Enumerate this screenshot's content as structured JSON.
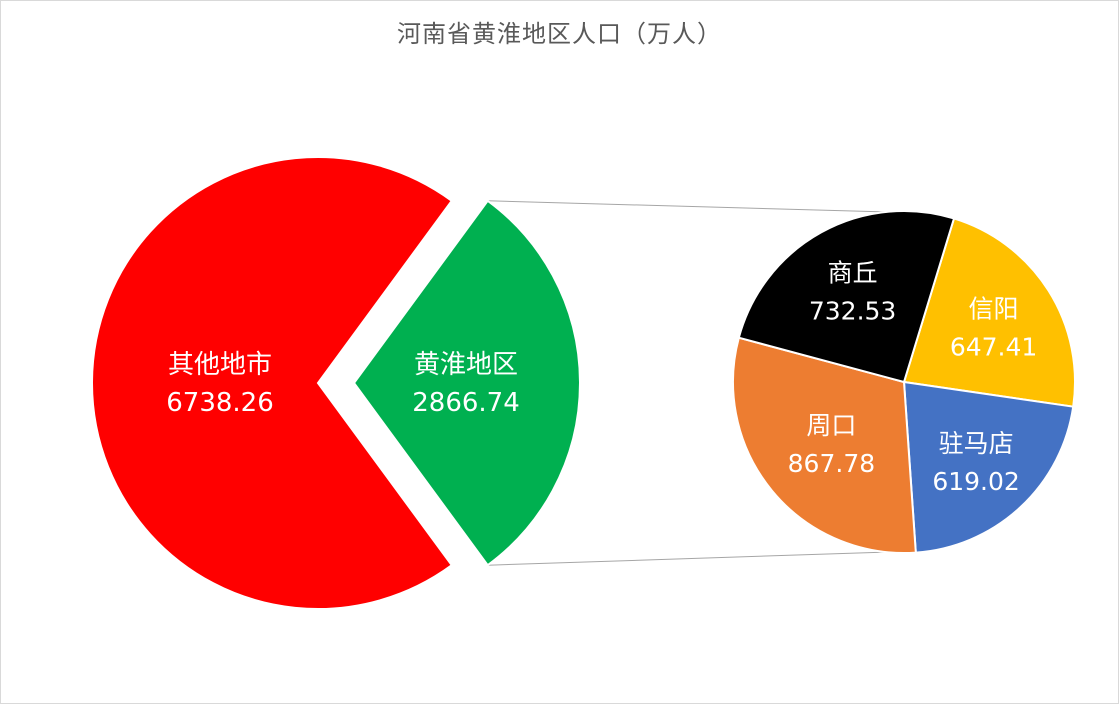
{
  "chart_data": {
    "type": "pie",
    "title": "河南省黄淮地区人口（万人）",
    "main": {
      "slices": [
        {
          "name": "其他地市",
          "value": 6738.26,
          "value_label": "6738.26",
          "color": "#ff0000"
        },
        {
          "name": "黄淮地区",
          "value": 2866.74,
          "value_label": "2866.74",
          "color": "#00b050"
        }
      ]
    },
    "breakout": {
      "of": "黄淮地区",
      "slices": [
        {
          "name": "信阳",
          "value": 647.41,
          "value_label": "647.41",
          "color": "#ffc000"
        },
        {
          "name": "驻马店",
          "value": 619.02,
          "value_label": "619.02",
          "color": "#4472c4"
        },
        {
          "name": "周口",
          "value": 867.78,
          "value_label": "867.78",
          "color": "#ed7d31"
        },
        {
          "name": "商丘",
          "value": 732.53,
          "value_label": "732.53",
          "color": "#000000"
        }
      ]
    }
  }
}
